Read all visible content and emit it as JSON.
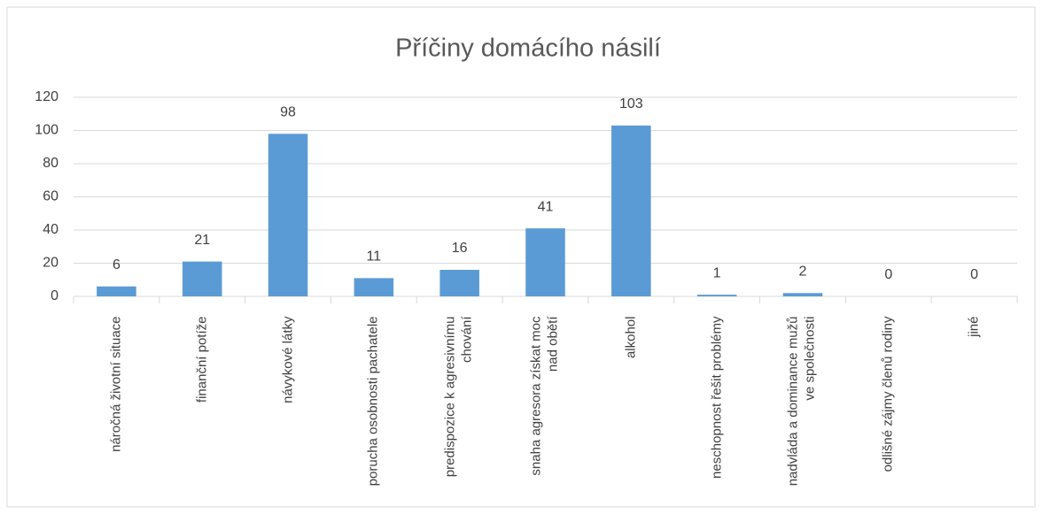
{
  "chart_data": {
    "type": "bar",
    "title": "Příčiny domácího násilí",
    "categories": [
      "náročná životní situace",
      "finanční potíže",
      "návykové látky",
      "porucha osobnosti pachatele",
      "predispozice k agresivnímu chování",
      "snaha agresora získat moc nad obětí",
      "alkohol",
      "neschopnost řešit problémy",
      "nadvláda a dominance mužů ve společnosti",
      "odlišné zájmy členů rodiny",
      "jiné"
    ],
    "values": [
      6,
      21,
      98,
      11,
      16,
      41,
      103,
      1,
      2,
      0,
      0
    ],
    "color": "#5b9bd5",
    "ylim": [
      0,
      120
    ],
    "yticks": [
      0,
      20,
      40,
      60,
      80,
      100,
      120
    ],
    "grid": true
  }
}
